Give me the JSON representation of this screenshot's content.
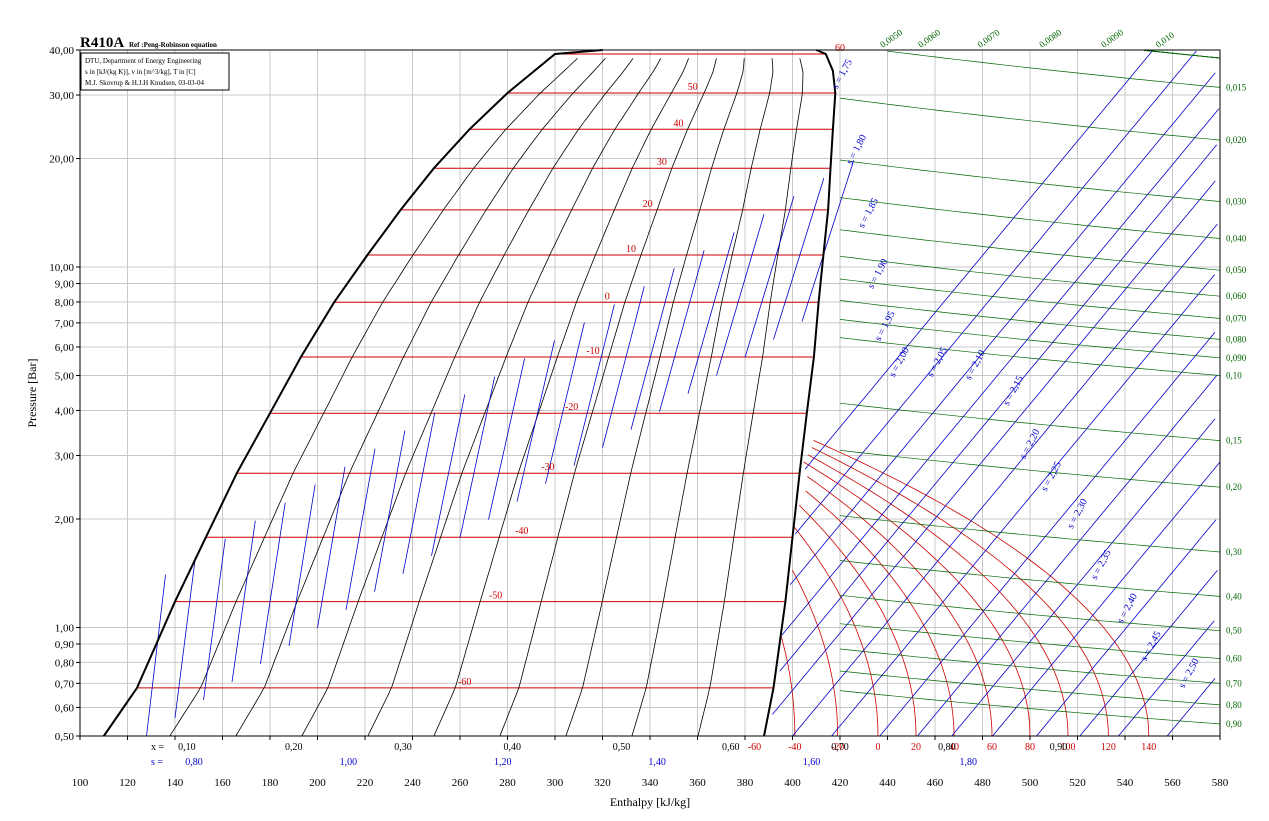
{
  "chart_data": {
    "type": "line",
    "title": "R410A",
    "subtitle": "Ref :Peng-Robinson equation",
    "info_lines": [
      "DTU, Department of Energy Engineering",
      "s in [kJ/(kg K)], v in [m^3/kg], T in [C]",
      "M.J. Skovrup & H.J.H Knudsen, 03-03-04"
    ],
    "xlabel": "Enthalpy [kJ/kg]",
    "ylabel": "Pressure [Bar]",
    "xlim": [
      100,
      580
    ],
    "ylim": [
      0.5,
      40
    ],
    "yscale": "log",
    "grid": true,
    "x_ticks": [
      "100",
      "120",
      "140",
      "160",
      "180",
      "200",
      "220",
      "240",
      "260",
      "280",
      "300",
      "320",
      "340",
      "360",
      "380",
      "400",
      "420",
      "440",
      "460",
      "480",
      "500",
      "520",
      "540",
      "560",
      "580"
    ],
    "y_ticks": [
      {
        "value": 0.5,
        "label": "0,50"
      },
      {
        "value": 0.6,
        "label": "0,60"
      },
      {
        "value": 0.7,
        "label": "0,70"
      },
      {
        "value": 0.8,
        "label": "0,80"
      },
      {
        "value": 0.9,
        "label": "0,90"
      },
      {
        "value": 1.0,
        "label": "1,00"
      },
      {
        "value": 2.0,
        "label": "2,00"
      },
      {
        "value": 3.0,
        "label": "3,00"
      },
      {
        "value": 4.0,
        "label": "4,00"
      },
      {
        "value": 5.0,
        "label": "5,00"
      },
      {
        "value": 6.0,
        "label": "6,00"
      },
      {
        "value": 7.0,
        "label": "7,00"
      },
      {
        "value": 8.0,
        "label": "8,00"
      },
      {
        "value": 9.0,
        "label": "9,00"
      },
      {
        "value": 10.0,
        "label": "10,00"
      },
      {
        "value": 20.0,
        "label": "20,00"
      },
      {
        "value": 30.0,
        "label": "30,00"
      },
      {
        "value": 40.0,
        "label": "40,00"
      }
    ],
    "x_quality_prefix": "x =",
    "x_quality_labels": [
      {
        "h": 145,
        "label": "0,10"
      },
      {
        "h": 190,
        "label": "0,20"
      },
      {
        "h": 236,
        "label": "0,30"
      },
      {
        "h": 282,
        "label": "0,40"
      },
      {
        "h": 328,
        "label": "0,50"
      },
      {
        "h": 374,
        "label": "0,60"
      },
      {
        "h": 420,
        "label": "0,70"
      },
      {
        "h": 465,
        "label": "0,80"
      },
      {
        "h": 512,
        "label": "0,90"
      }
    ],
    "s_prefix": "s =",
    "s_liquid_labels": [
      {
        "h": 148,
        "label": "0,80"
      },
      {
        "h": 213,
        "label": "1,00"
      },
      {
        "h": 278,
        "label": "1,20"
      },
      {
        "h": 343,
        "label": "1,40"
      },
      {
        "h": 408,
        "label": "1,60"
      },
      {
        "h": 474,
        "label": "1,80"
      }
    ],
    "t_vapor_labels": [
      {
        "h": 384,
        "label": "-60"
      },
      {
        "h": 401,
        "label": "-40"
      },
      {
        "h": 419,
        "label": "-20"
      },
      {
        "h": 436,
        "label": "0"
      },
      {
        "h": 452,
        "label": "20"
      },
      {
        "h": 468,
        "label": "40"
      },
      {
        "h": 484,
        "label": "60"
      },
      {
        "h": 500,
        "label": "80"
      },
      {
        "h": 516,
        "label": "100"
      },
      {
        "h": 533,
        "label": "120"
      },
      {
        "h": 550,
        "label": "140"
      }
    ],
    "saturation_temps": [
      {
        "t": "-60",
        "p": 0.68,
        "lbl_h": 262
      },
      {
        "t": "-50",
        "p": 1.18,
        "lbl_h": 275
      },
      {
        "t": "-40",
        "p": 1.78,
        "lbl_h": 286
      },
      {
        "t": "-30",
        "p": 2.68,
        "lbl_h": 297
      },
      {
        "t": "-20",
        "p": 3.93,
        "lbl_h": 307
      },
      {
        "t": "-10",
        "p": 5.63,
        "lbl_h": 316
      },
      {
        "t": "0",
        "p": 7.98,
        "lbl_h": 322
      },
      {
        "t": "10",
        "p": 10.8,
        "lbl_h": 332
      },
      {
        "t": "20",
        "p": 14.4,
        "lbl_h": 339
      },
      {
        "t": "30",
        "p": 18.8,
        "lbl_h": 345
      },
      {
        "t": "40",
        "p": 24.1,
        "lbl_h": 352
      },
      {
        "t": "50",
        "p": 30.4,
        "lbl_h": 358
      },
      {
        "t": "60",
        "p": 39.0,
        "lbl_h": 420
      }
    ],
    "saturation_liquid": [
      [
        110,
        0.5
      ],
      [
        124,
        0.68
      ],
      [
        140,
        1.18
      ],
      [
        153,
        1.78
      ],
      [
        166,
        2.68
      ],
      [
        180,
        3.93
      ],
      [
        193,
        5.63
      ],
      [
        207,
        7.98
      ],
      [
        221,
        10.8
      ],
      [
        235,
        14.4
      ],
      [
        249,
        18.8
      ],
      [
        264,
        24.1
      ],
      [
        280,
        30.4
      ],
      [
        300,
        39.0
      ],
      [
        320,
        40.0
      ]
    ],
    "saturation_vapor": [
      [
        388,
        0.5
      ],
      [
        392,
        0.68
      ],
      [
        397,
        1.18
      ],
      [
        400,
        1.78
      ],
      [
        403,
        2.68
      ],
      [
        406,
        3.93
      ],
      [
        409,
        5.63
      ],
      [
        411,
        7.98
      ],
      [
        413,
        10.8
      ],
      [
        415,
        14.4
      ],
      [
        416,
        18.8
      ],
      [
        417,
        24.1
      ],
      [
        418,
        30.4
      ],
      [
        417,
        35
      ],
      [
        414,
        39.0
      ],
      [
        410,
        40.0
      ]
    ],
    "entropy_vapor_labels": [
      {
        "s": "1,75",
        "h": 422,
        "p": 34
      },
      {
        "s": "1,80",
        "h": 428,
        "p": 21
      },
      {
        "s": "1,85",
        "h": 433,
        "p": 14
      },
      {
        "s": "1,90",
        "h": 437,
        "p": 9.5
      },
      {
        "s": "1,95",
        "h": 440,
        "p": 6.8
      },
      {
        "s": "2,00",
        "h": 446,
        "p": 5.4
      },
      {
        "s": "2,05",
        "h": 462,
        "p": 5.4
      },
      {
        "s": "2,10",
        "h": 478,
        "p": 5.3
      },
      {
        "s": "2,15",
        "h": 494,
        "p": 4.5
      },
      {
        "s": "2,20",
        "h": 501,
        "p": 3.2
      },
      {
        "s": "2,25",
        "h": 510,
        "p": 2.6
      },
      {
        "s": "2,30",
        "h": 521,
        "p": 2.05
      },
      {
        "s": "2,35",
        "h": 531,
        "p": 1.48
      },
      {
        "s": "2,40",
        "h": 542,
        "p": 1.12
      },
      {
        "s": "2,45",
        "h": 552,
        "p": 0.88
      },
      {
        "s": "2,50",
        "h": 568,
        "p": 0.74
      }
    ],
    "volume_labels": [
      {
        "v": "0,0050",
        "h": 438,
        "p": 40.5
      },
      {
        "v": "0,0060",
        "h": 454,
        "p": 40.5
      },
      {
        "v": "0,0070",
        "h": 479,
        "p": 40.5
      },
      {
        "v": "0,0080",
        "h": 505,
        "p": 40.5
      },
      {
        "v": "0,0090",
        "h": 531,
        "p": 40.5
      },
      {
        "v": "0,010",
        "h": 554,
        "p": 40.5
      },
      {
        "v": "0,015",
        "p": 31.5
      },
      {
        "v": "0,020",
        "p": 22.5
      },
      {
        "v": "0,030",
        "p": 15.2
      },
      {
        "v": "0,040",
        "p": 12.0
      },
      {
        "v": "0,050",
        "p": 9.8
      },
      {
        "v": "0,060",
        "p": 8.3
      },
      {
        "v": "0,070",
        "p": 7.2
      },
      {
        "v": "0,080",
        "p": 6.3
      },
      {
        "v": "0,090",
        "p": 5.6
      },
      {
        "v": "0,10",
        "p": 5.0
      },
      {
        "v": "0,15",
        "p": 3.3
      },
      {
        "v": "0,20",
        "p": 2.45
      },
      {
        "v": "0,30",
        "p": 1.62
      },
      {
        "v": "0,40",
        "p": 1.22
      },
      {
        "v": "0,50",
        "p": 0.98
      },
      {
        "v": "0,60",
        "p": 0.82
      },
      {
        "v": "0,70",
        "p": 0.7
      },
      {
        "v": "0,80",
        "p": 0.61
      },
      {
        "v": "0,90",
        "p": 0.54
      }
    ],
    "colors": {
      "temperature": "#cc0000",
      "entropy": "#0000cc",
      "volume": "#006600",
      "quality": "#000000",
      "grid": "#c8c8c8"
    }
  }
}
